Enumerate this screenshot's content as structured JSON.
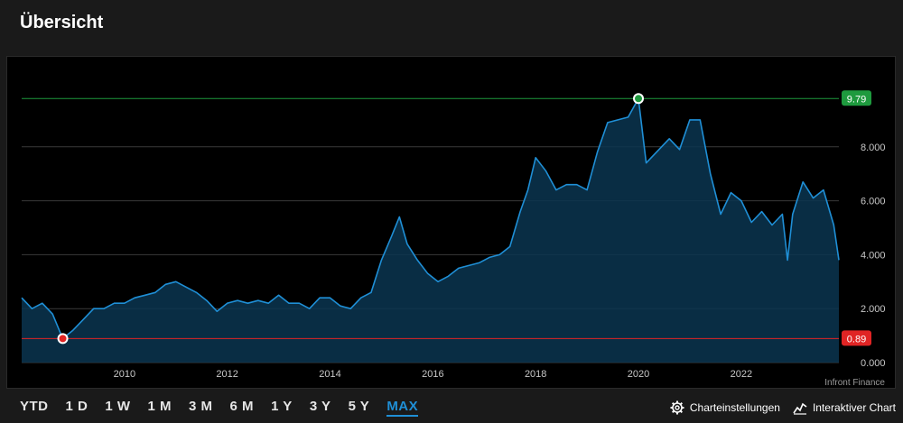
{
  "page": {
    "title": "Übersicht"
  },
  "range_buttons": [
    "YTD",
    "1 D",
    "1 W",
    "1 M",
    "3 M",
    "6 M",
    "1 Y",
    "3 Y",
    "5 Y",
    "MAX"
  ],
  "active_range": "MAX",
  "tools": {
    "settings_label": "Charteinstellungen",
    "interactive_label": "Interaktiver Chart"
  },
  "icons": {
    "settings": "gear-icon",
    "interactive": "line-chart-icon"
  },
  "colors": {
    "line": "#1f8fd6",
    "area": "#0b3550",
    "high": "#1e9a3e",
    "low": "#e02424",
    "active": "#1f8fd6"
  },
  "credit": "Infront Finance",
  "chart_data": {
    "type": "area",
    "title": "",
    "xlabel": "",
    "ylabel": "",
    "xlim": [
      2008.0,
      2023.9
    ],
    "ylim": [
      0,
      10
    ],
    "x_ticks": [
      "2010",
      "2012",
      "2014",
      "2016",
      "2018",
      "2020",
      "2022"
    ],
    "y_ticks": [
      "0.000",
      "2.000",
      "4.000",
      "6.000",
      "8.000"
    ],
    "grid": true,
    "high": {
      "label": "9.79",
      "value": 9.79,
      "x": 2020.0
    },
    "low": {
      "label": "0.89",
      "value": 0.89,
      "x": 2008.8
    },
    "x": [
      2008.0,
      2008.2,
      2008.4,
      2008.6,
      2008.8,
      2009.0,
      2009.2,
      2009.4,
      2009.6,
      2009.8,
      2010.0,
      2010.2,
      2010.4,
      2010.6,
      2010.8,
      2011.0,
      2011.2,
      2011.4,
      2011.6,
      2011.8,
      2012.0,
      2012.2,
      2012.4,
      2012.6,
      2012.8,
      2013.0,
      2013.2,
      2013.4,
      2013.6,
      2013.8,
      2014.0,
      2014.2,
      2014.4,
      2014.6,
      2014.8,
      2015.0,
      2015.2,
      2015.35,
      2015.5,
      2015.7,
      2015.9,
      2016.1,
      2016.3,
      2016.5,
      2016.7,
      2016.9,
      2017.1,
      2017.3,
      2017.5,
      2017.7,
      2017.85,
      2018.0,
      2018.2,
      2018.4,
      2018.6,
      2018.8,
      2019.0,
      2019.2,
      2019.4,
      2019.6,
      2019.8,
      2020.0,
      2020.15,
      2020.35,
      2020.6,
      2020.8,
      2021.0,
      2021.2,
      2021.4,
      2021.6,
      2021.8,
      2022.0,
      2022.2,
      2022.4,
      2022.6,
      2022.8,
      2022.9,
      2023.0,
      2023.2,
      2023.4,
      2023.6,
      2023.8,
      2023.9
    ],
    "values": [
      2.4,
      2.0,
      2.2,
      1.8,
      0.89,
      1.2,
      1.6,
      2.0,
      2.0,
      2.2,
      2.2,
      2.4,
      2.5,
      2.6,
      2.9,
      3.0,
      2.8,
      2.6,
      2.3,
      1.9,
      2.2,
      2.3,
      2.2,
      2.3,
      2.2,
      2.5,
      2.2,
      2.2,
      2.0,
      2.4,
      2.4,
      2.1,
      2.0,
      2.4,
      2.6,
      3.8,
      4.7,
      5.4,
      4.4,
      3.8,
      3.3,
      3.0,
      3.2,
      3.5,
      3.6,
      3.7,
      3.9,
      4.0,
      4.3,
      5.6,
      6.4,
      7.6,
      7.1,
      6.4,
      6.6,
      6.6,
      6.4,
      7.8,
      8.9,
      9.0,
      9.1,
      9.79,
      7.4,
      7.8,
      8.3,
      7.9,
      9.0,
      9.0,
      7.0,
      5.5,
      6.3,
      6.0,
      5.2,
      5.6,
      5.1,
      5.5,
      3.8,
      5.5,
      6.7,
      6.1,
      6.4,
      5.1,
      3.8
    ]
  }
}
